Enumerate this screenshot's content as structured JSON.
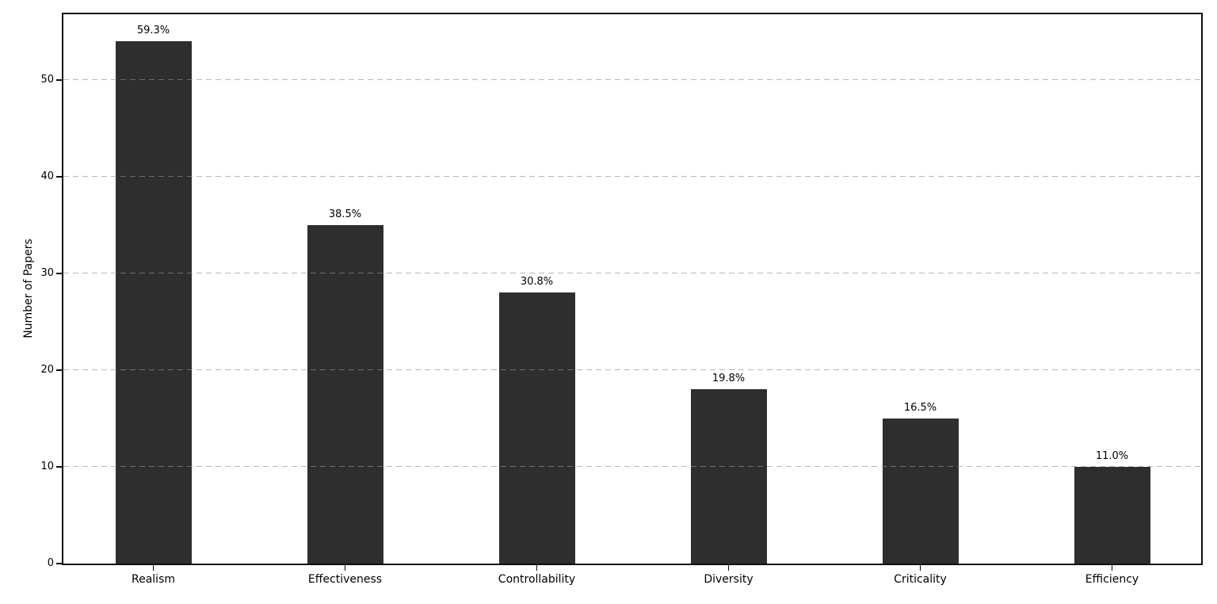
{
  "chart_data": {
    "type": "bar",
    "title": "",
    "xlabel": "",
    "ylabel": "Number of Papers",
    "categories": [
      "Realism",
      "Effectiveness",
      "Controllability",
      "Diversity",
      "Criticality",
      "Efficiency"
    ],
    "values": [
      54,
      35,
      28,
      18,
      15,
      10
    ],
    "bar_labels": [
      "59.3%",
      "38.5%",
      "30.8%",
      "19.8%",
      "16.5%",
      "11.0%"
    ],
    "yticks": [
      0,
      10,
      20,
      30,
      40,
      50
    ],
    "ylim": [
      0,
      56.8
    ],
    "legend": "none",
    "grid": "horizontal-dashed-over-bars",
    "bar_color": "#2e2e2e",
    "grid_color": "#c8c8c8",
    "frame_color": "#0f0f0f",
    "background": "#ffffff"
  }
}
